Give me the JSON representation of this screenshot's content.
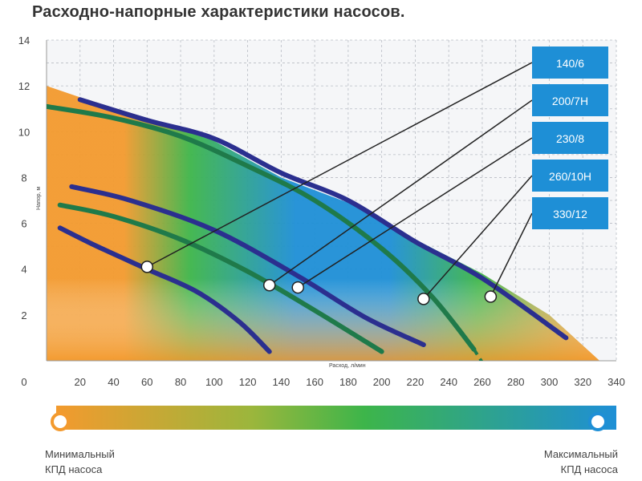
{
  "title": "Расходно-напорные характеристики насосов.",
  "chart_data": {
    "type": "line",
    "title": "Расходно-напорные характеристики насосов.",
    "xlabel": "Расход, л/мин",
    "ylabel": "Напор, м",
    "xlim": [
      0,
      340
    ],
    "ylim": [
      0,
      14
    ],
    "x_ticks": [
      "0",
      "20",
      "40",
      "60",
      "80",
      "100",
      "120",
      "140",
      "160",
      "180",
      "200",
      "220",
      "240",
      "260",
      "280",
      "300",
      "320",
      "340"
    ],
    "y_ticks": [
      "2",
      "4",
      "6",
      "8",
      "10",
      "12",
      "14"
    ],
    "grid": true,
    "colors": {
      "low_efficiency": "#f39a2e",
      "mid_efficiency": "#3db54a",
      "high_efficiency": "#1e8fd6",
      "outer_curve": "#2b2f8f",
      "inner_curve": "#1f7a4a",
      "label_box": "#1e8fd6"
    },
    "series": [
      {
        "name": "140/6",
        "x": [
          8,
          30,
          60,
          90,
          115,
          133
        ],
        "y": [
          5.8,
          5.0,
          4.0,
          3.0,
          1.7,
          0.4
        ],
        "marker": [
          60,
          4.1
        ],
        "color": "#2b2f8f"
      },
      {
        "name": "200/7H",
        "x": [
          8,
          40,
          80,
          120,
          160,
          200
        ],
        "y": [
          6.8,
          6.3,
          5.3,
          3.9,
          2.2,
          0.4
        ],
        "marker": [
          133,
          3.3
        ],
        "color": "#1f7a4a"
      },
      {
        "name": "230/8",
        "x": [
          15,
          50,
          100,
          150,
          190,
          225
        ],
        "y": [
          7.6,
          7.0,
          5.7,
          3.7,
          1.9,
          0.7
        ],
        "marker": [
          150,
          3.2
        ],
        "color": "#2b2f8f"
      },
      {
        "name": "260/10H",
        "x": [
          0,
          40,
          80,
          120,
          160,
          200,
          230,
          255
        ],
        "y": [
          11.1,
          10.6,
          9.8,
          8.5,
          7.0,
          4.9,
          2.8,
          0.5
        ],
        "marker": [
          225,
          2.7
        ],
        "color": "#1f7a4a"
      },
      {
        "name": "330/12",
        "x": [
          20,
          60,
          100,
          140,
          180,
          220,
          260,
          310
        ],
        "y": [
          11.4,
          10.5,
          9.7,
          8.2,
          7.0,
          5.2,
          3.6,
          1.0
        ],
        "marker": [
          265,
          2.8
        ],
        "color": "#2b2f8f"
      }
    ]
  },
  "legend": {
    "min_line1": "Минимальный",
    "min_line2": "КПД насоса",
    "max_line1": "Максимальный",
    "max_line2": "КПД насоса"
  }
}
